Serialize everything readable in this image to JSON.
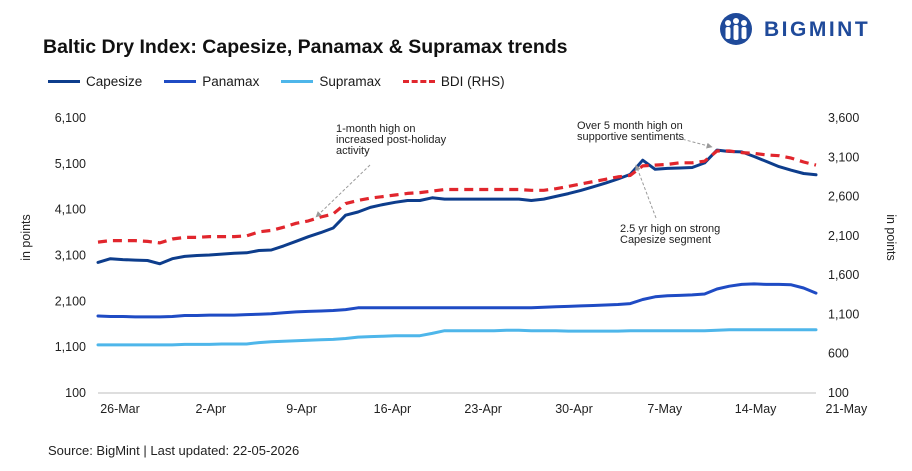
{
  "header": {
    "title": "Baltic Dry Index: Capesize, Panamax & Supramax trends",
    "brand": "BIGMINT"
  },
  "footer": {
    "source": "Source: BigMint | Last updated: 22-05-2026"
  },
  "colors": {
    "capesize": "#0d3d8c",
    "panamax": "#1f4bc4",
    "supramax": "#4eb6ea",
    "bdi": "#e1262d",
    "brand": "#1f4a9a"
  },
  "chart_data": {
    "type": "line",
    "legend_position": "top-left",
    "grid": false,
    "x_tick_labels": [
      "26-Mar",
      "2-Apr",
      "9-Apr",
      "16-Apr",
      "23-Apr",
      "30-Apr",
      "7-May",
      "14-May",
      "21-May"
    ],
    "left_axis": {
      "label": "in points",
      "range": [
        100,
        6100
      ],
      "ticks": [
        "6,100",
        "5,100",
        "4,100",
        "3,100",
        "2,100",
        "1,100",
        "100"
      ]
    },
    "right_axis": {
      "label": "in points",
      "range": [
        100,
        3600
      ],
      "ticks": [
        "3,600",
        "3,100",
        "2,600",
        "2,100",
        "1,600",
        "1,100",
        "600",
        "100"
      ]
    },
    "series": [
      {
        "name": "Capesize",
        "key": "capesize",
        "axis": "left",
        "style": "solid",
        "values": [
          2950,
          3030,
          3010,
          3000,
          2990,
          2920,
          3030,
          3080,
          3100,
          3110,
          3130,
          3150,
          3160,
          3210,
          3220,
          3310,
          3410,
          3510,
          3600,
          3700,
          3980,
          4050,
          4150,
          4210,
          4260,
          4300,
          4300,
          4360,
          4330,
          4330,
          4330,
          4330,
          4330,
          4330,
          4330,
          4300,
          4330,
          4390,
          4450,
          4520,
          4600,
          4680,
          4770,
          4870,
          5180,
          4980,
          5000,
          5010,
          5020,
          5120,
          5400,
          5370,
          5360,
          5260,
          5150,
          5040,
          4960,
          4890,
          4860
        ]
      },
      {
        "name": "Panamax",
        "key": "panamax",
        "axis": "left",
        "style": "solid",
        "values": [
          1780,
          1770,
          1770,
          1760,
          1760,
          1760,
          1770,
          1790,
          1790,
          1800,
          1800,
          1800,
          1810,
          1820,
          1830,
          1850,
          1870,
          1880,
          1890,
          1900,
          1920,
          1960,
          1960,
          1960,
          1960,
          1960,
          1960,
          1960,
          1960,
          1960,
          1960,
          1960,
          1960,
          1960,
          1960,
          1960,
          1970,
          1980,
          1990,
          2000,
          2010,
          2020,
          2030,
          2050,
          2140,
          2200,
          2220,
          2230,
          2240,
          2260,
          2370,
          2430,
          2470,
          2480,
          2470,
          2470,
          2460,
          2390,
          2280
        ]
      },
      {
        "name": "Supramax",
        "key": "supramax",
        "axis": "left",
        "style": "solid",
        "values": [
          1150,
          1150,
          1150,
          1150,
          1150,
          1150,
          1150,
          1160,
          1160,
          1160,
          1170,
          1170,
          1170,
          1200,
          1220,
          1230,
          1240,
          1250,
          1260,
          1270,
          1290,
          1320,
          1330,
          1340,
          1350,
          1350,
          1350,
          1400,
          1460,
          1460,
          1460,
          1460,
          1460,
          1470,
          1470,
          1460,
          1460,
          1460,
          1450,
          1450,
          1450,
          1450,
          1450,
          1460,
          1460,
          1460,
          1460,
          1460,
          1460,
          1460,
          1470,
          1480,
          1480,
          1480,
          1480,
          1480,
          1480,
          1480,
          1480
        ]
      },
      {
        "name": "BDI (RHS)",
        "key": "bdi",
        "axis": "right",
        "style": "dashed",
        "values": [
          2020,
          2040,
          2040,
          2040,
          2030,
          2010,
          2060,
          2080,
          2080,
          2090,
          2090,
          2090,
          2100,
          2150,
          2170,
          2210,
          2260,
          2290,
          2340,
          2380,
          2510,
          2550,
          2580,
          2600,
          2620,
          2640,
          2650,
          2670,
          2690,
          2690,
          2690,
          2690,
          2690,
          2690,
          2690,
          2680,
          2680,
          2700,
          2730,
          2760,
          2790,
          2820,
          2850,
          2870,
          2990,
          3000,
          3010,
          3030,
          3030,
          3050,
          3180,
          3180,
          3160,
          3150,
          3130,
          3120,
          3090,
          3040,
          3000
        ]
      }
    ],
    "annotations": [
      {
        "key": "bdi_1m",
        "lines": [
          "1-month high on",
          "increased post-holiday",
          "activity"
        ]
      },
      {
        "key": "bdi_5m",
        "lines": [
          "Over 5 month high on",
          "supportive sentiments"
        ]
      },
      {
        "key": "cape_2_5y",
        "lines": [
          "2.5 yr high on strong",
          "Capesize segment"
        ]
      }
    ]
  }
}
